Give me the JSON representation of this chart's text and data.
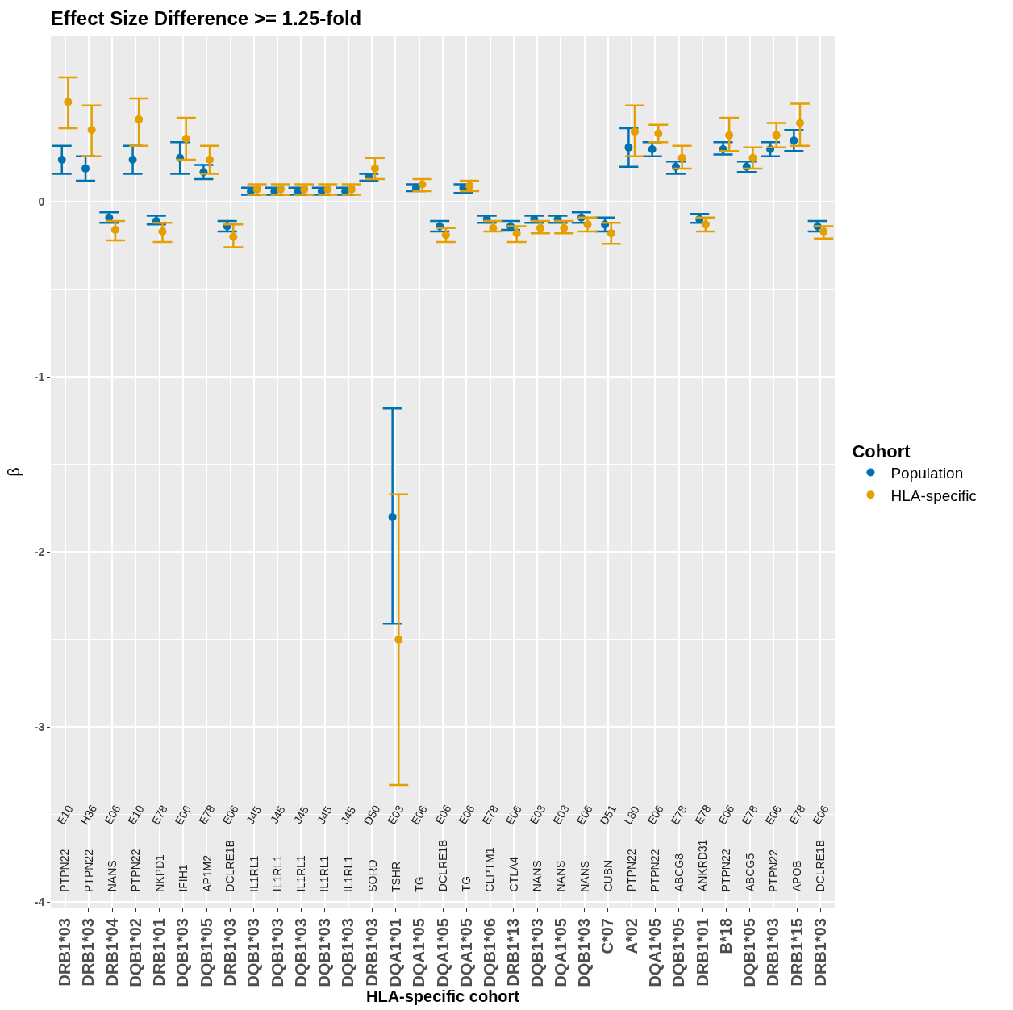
{
  "chart_data": {
    "type": "scatter",
    "title": "Effect Size Difference >= 1.25-fold",
    "xlabel": "HLA-specific cohort",
    "ylabel": "β",
    "legend_title": "Cohort",
    "categories": [
      "DRB1*03",
      "DRB1*03",
      "DRB1*04",
      "DQB1*02",
      "DRB1*01",
      "DQB1*03",
      "DQB1*05",
      "DRB1*03",
      "DQB1*03",
      "DQB1*03",
      "DQB1*03",
      "DQB1*03",
      "DQB1*03",
      "DRB1*03",
      "DQA1*01",
      "DQA1*05",
      "DQA1*05",
      "DQA1*05",
      "DQB1*06",
      "DRB1*13",
      "DQB1*03",
      "DQA1*05",
      "DQB1*03",
      "C*07",
      "A*02",
      "DQA1*05",
      "DQB1*05",
      "DRB1*01",
      "B*18",
      "DQB1*05",
      "DRB1*03",
      "DRB1*15",
      "DRB1*03"
    ],
    "series": [
      {
        "name": "Population",
        "color": "#0072b2",
        "values": [
          0.24,
          0.19,
          -0.09,
          0.24,
          -0.11,
          0.25,
          0.17,
          -0.14,
          0.06,
          0.06,
          0.06,
          0.06,
          0.06,
          0.14,
          -1.8,
          0.08,
          -0.14,
          0.08,
          -0.1,
          -0.14,
          -0.1,
          -0.1,
          -0.09,
          -0.13,
          0.31,
          0.3,
          0.2,
          -0.1,
          0.3,
          0.2,
          0.3,
          0.35,
          -0.14
        ],
        "errors": [
          [
            0.16,
            0.32
          ],
          [
            0.12,
            0.26
          ],
          [
            -0.12,
            -0.06
          ],
          [
            0.16,
            0.32
          ],
          [
            -0.13,
            -0.08
          ],
          [
            0.16,
            0.34
          ],
          [
            0.13,
            0.21
          ],
          [
            -0.17,
            -0.11
          ],
          [
            0.04,
            0.08
          ],
          [
            0.04,
            0.08
          ],
          [
            0.04,
            0.08
          ],
          [
            0.04,
            0.08
          ],
          [
            0.04,
            0.08
          ],
          [
            0.12,
            0.16
          ],
          [
            -2.41,
            -1.18
          ],
          [
            0.06,
            0.1
          ],
          [
            -0.17,
            -0.11
          ],
          [
            0.05,
            0.1
          ],
          [
            -0.12,
            -0.08
          ],
          [
            -0.16,
            -0.11
          ],
          [
            -0.12,
            -0.08
          ],
          [
            -0.12,
            -0.08
          ],
          [
            -0.12,
            -0.06
          ],
          [
            -0.17,
            -0.09
          ],
          [
            0.2,
            0.42
          ],
          [
            0.26,
            0.34
          ],
          [
            0.16,
            0.23
          ],
          [
            -0.12,
            -0.07
          ],
          [
            0.27,
            0.34
          ],
          [
            0.17,
            0.23
          ],
          [
            0.26,
            0.34
          ],
          [
            0.29,
            0.41
          ],
          [
            -0.17,
            -0.11
          ]
        ]
      },
      {
        "name": "HLA-specific",
        "color": "#e69f00",
        "values": [
          0.57,
          0.41,
          -0.16,
          0.47,
          -0.17,
          0.36,
          0.24,
          -0.2,
          0.07,
          0.07,
          0.07,
          0.07,
          0.07,
          0.19,
          -2.5,
          0.1,
          -0.19,
          0.09,
          -0.15,
          -0.18,
          -0.15,
          -0.15,
          -0.13,
          -0.18,
          0.4,
          0.39,
          0.25,
          -0.13,
          0.38,
          0.25,
          0.38,
          0.45,
          -0.17
        ],
        "errors": [
          [
            0.42,
            0.71
          ],
          [
            0.26,
            0.55
          ],
          [
            -0.22,
            -0.11
          ],
          [
            0.32,
            0.59
          ],
          [
            -0.23,
            -0.12
          ],
          [
            0.24,
            0.48
          ],
          [
            0.16,
            0.32
          ],
          [
            -0.26,
            -0.13
          ],
          [
            0.04,
            0.1
          ],
          [
            0.04,
            0.1
          ],
          [
            0.04,
            0.1
          ],
          [
            0.04,
            0.1
          ],
          [
            0.04,
            0.1
          ],
          [
            0.13,
            0.25
          ],
          [
            -3.33,
            -1.67
          ],
          [
            0.06,
            0.13
          ],
          [
            -0.23,
            -0.15
          ],
          [
            0.06,
            0.12
          ],
          [
            -0.17,
            -0.11
          ],
          [
            -0.23,
            -0.14
          ],
          [
            -0.18,
            -0.11
          ],
          [
            -0.18,
            -0.11
          ],
          [
            -0.17,
            -0.09
          ],
          [
            -0.24,
            -0.12
          ],
          [
            0.26,
            0.55
          ],
          [
            0.34,
            0.44
          ],
          [
            0.19,
            0.32
          ],
          [
            -0.17,
            -0.09
          ],
          [
            0.29,
            0.48
          ],
          [
            0.19,
            0.31
          ],
          [
            0.31,
            0.45
          ],
          [
            0.32,
            0.56
          ],
          [
            -0.21,
            -0.14
          ]
        ]
      }
    ],
    "annotations": [
      "E10",
      "PTPN22",
      "H36",
      "PTPN22",
      "E06",
      "NANS",
      "E10",
      "PTPN22",
      "E78",
      "NKPD1",
      "E06",
      "IFIH1",
      "E78",
      "AP1M2",
      "E06",
      "DCLRE1B",
      "J45",
      "IL1RL1",
      "J45",
      "IL1RL1",
      "J45",
      "IL1RL1",
      "J45",
      "IL1RL1",
      "J45",
      "IL1RL1",
      "D50",
      "SORD",
      "E03",
      "TSHR",
      "E06",
      "TG",
      "E06",
      "DCLRE1B",
      "E06",
      "TG",
      "E78",
      "CLPTM1",
      "E06",
      "CTLA4",
      "E03",
      "NANS",
      "E03",
      "NANS",
      "E06",
      "NANS",
      "D51",
      "CUBN",
      "L80",
      "PTPN22",
      "E06",
      "PTPN22",
      "E78",
      "ABCG8",
      "E78",
      "ANKRD31",
      "E06",
      "PTPN22",
      "E78",
      "ABCG5",
      "E06",
      "PTPN22",
      "E78",
      "APOB",
      "E06",
      "DCLRE1B"
    ],
    "ylim": [
      -4.03,
      0.945
    ],
    "yticks": [
      -4,
      -3,
      -2,
      -1,
      0
    ],
    "grid": true,
    "legend": "right",
    "marker": "circle"
  }
}
